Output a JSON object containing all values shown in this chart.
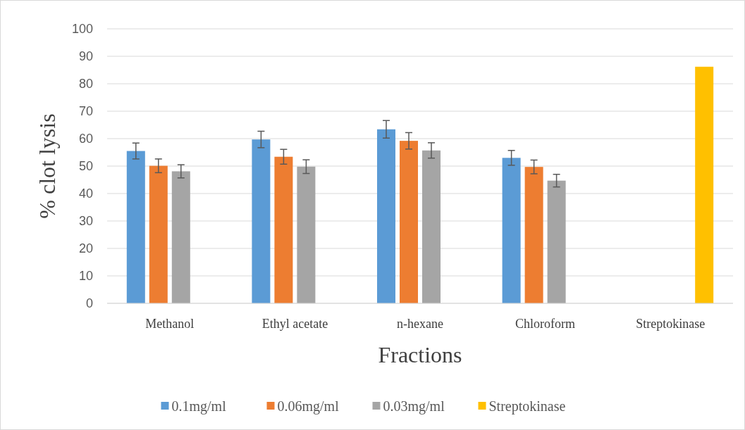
{
  "chart_data": {
    "type": "bar",
    "xlabel": "Fractions",
    "ylabel": "% clot lysis",
    "categories": [
      "Methanol",
      "Ethyl acetate",
      "n-hexane",
      "Chloroform",
      "Streptokinase"
    ],
    "series": [
      {
        "name": "0.1mg/ml",
        "color": "#5b9bd5",
        "values": [
          55.5,
          59.7,
          63.4,
          53,
          null
        ],
        "errors": [
          2.9,
          3,
          3.2,
          2.7,
          null
        ]
      },
      {
        "name": "0.06mg/ml",
        "color": "#ed7d31",
        "values": [
          50.1,
          53.4,
          59.2,
          49.7,
          null
        ],
        "errors": [
          2.5,
          2.7,
          3,
          2.5,
          null
        ]
      },
      {
        "name": "0.03mg/ml",
        "color": "#a5a5a5",
        "values": [
          48.1,
          49.8,
          55.7,
          44.7,
          null
        ],
        "errors": [
          2.4,
          2.5,
          2.8,
          2.3,
          null
        ]
      },
      {
        "name": "Streptokinase",
        "color": "#ffc000",
        "values": [
          null,
          null,
          null,
          null,
          86.2
        ]
      }
    ],
    "ylim": [
      0,
      100
    ],
    "yticks": [
      0,
      10,
      20,
      30,
      40,
      50,
      60,
      70,
      80,
      90,
      100
    ],
    "grid": "y",
    "legend": "bottom"
  }
}
